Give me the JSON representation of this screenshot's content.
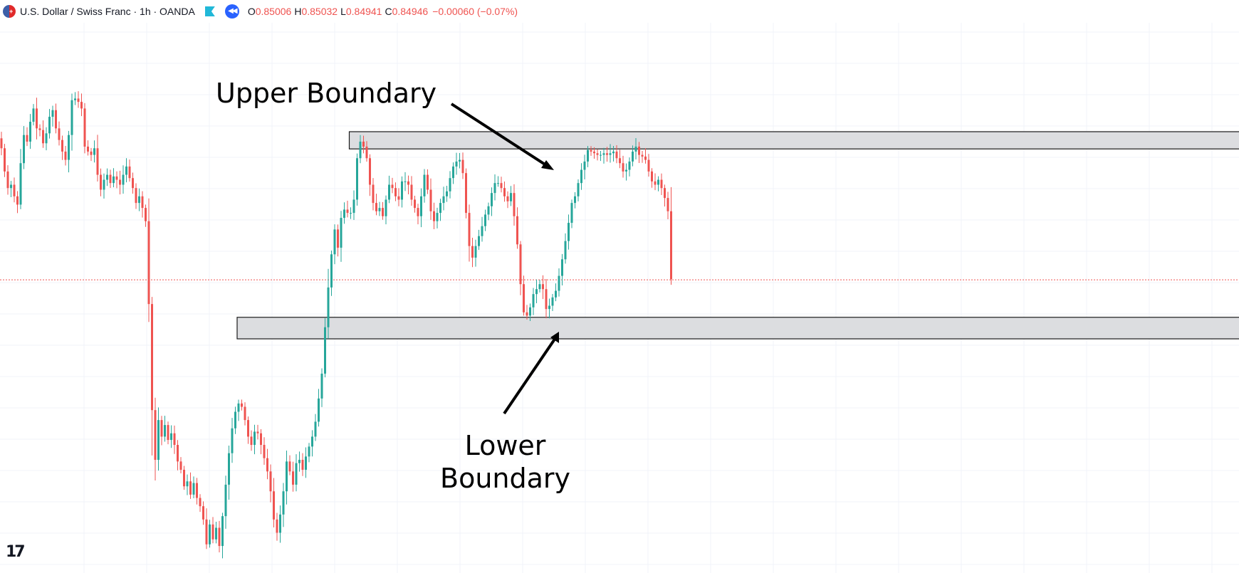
{
  "header": {
    "symbol": "U.S. Dollar / Swiss Franc · 1h · OANDA",
    "open_label": "O",
    "open_value": "0.85006",
    "high_label": "H",
    "high_value": "0.85032",
    "low_label": "L",
    "low_value": "0.84941",
    "close_label": "C",
    "close_value": "0.84946",
    "change": "−0.00060 (−0.07%)"
  },
  "icons": {
    "flag": "usd-chf-flag-icon",
    "marker": "flag-marker-icon",
    "replay": "replay-icon",
    "logo": "tradingview-logo-icon"
  },
  "annotations": {
    "upper": "Upper Boundary",
    "lower_line1": "Lower",
    "lower_line2": "Boundary"
  },
  "colors": {
    "up": "#26a69a",
    "down": "#ef5350",
    "zone_fill": "#dcdde0",
    "zone_stroke": "#1a1a1a",
    "grid": "#f0f3fa",
    "price_line": "#ef5350"
  },
  "chart_data": {
    "type": "candlestick",
    "symbol": "USDCHF",
    "timeframe": "1h",
    "title": "U.S. Dollar / Swiss Franc · 1h · OANDA",
    "ylim": [
      0.8322,
      0.8648
    ],
    "last_close": 0.84946,
    "zones": [
      {
        "name": "Upper Boundary",
        "start_bar": 109,
        "y_low": 0.85736,
        "y_high": 0.8584
      },
      {
        "name": "Lower Boundary",
        "start_bar": 74,
        "y_low": 0.8459,
        "y_high": 0.8472
      }
    ],
    "closes": [
      0.8574,
      0.856,
      0.855,
      0.8552,
      0.8545,
      0.854,
      0.8565,
      0.8582,
      0.8578,
      0.859,
      0.8598,
      0.8586,
      0.8585,
      0.8577,
      0.8583,
      0.8593,
      0.8597,
      0.8586,
      0.8579,
      0.8572,
      0.8567,
      0.8582,
      0.8603,
      0.8604,
      0.8602,
      0.8598,
      0.8575,
      0.8572,
      0.857,
      0.8574,
      0.8558,
      0.8549,
      0.8555,
      0.8558,
      0.8553,
      0.8557,
      0.8555,
      0.8552,
      0.8558,
      0.8563,
      0.8556,
      0.855,
      0.8541,
      0.8545,
      0.8538,
      0.853,
      0.848,
      0.8416,
      0.8386,
      0.841,
      0.84,
      0.8407,
      0.8398,
      0.8402,
      0.8395,
      0.8385,
      0.838,
      0.837,
      0.8373,
      0.8365,
      0.8372,
      0.8363,
      0.8358,
      0.835,
      0.8335,
      0.8347,
      0.8338,
      0.8345,
      0.8334,
      0.8352,
      0.8371,
      0.839,
      0.8405,
      0.8415,
      0.842,
      0.8418,
      0.841,
      0.84,
      0.8395,
      0.8403,
      0.8402,
      0.8395,
      0.8387,
      0.8379,
      0.8367,
      0.835,
      0.8342,
      0.8353,
      0.8367,
      0.8385,
      0.8379,
      0.8371,
      0.8384,
      0.8386,
      0.838,
      0.8388,
      0.8394,
      0.84,
      0.8409,
      0.8423,
      0.8438,
      0.8466,
      0.849,
      0.851,
      0.8525,
      0.8514,
      0.8532,
      0.8537,
      0.8535,
      0.8535,
      0.8543,
      0.8568,
      0.8578,
      0.8575,
      0.8568,
      0.8552,
      0.8541,
      0.8536,
      0.8538,
      0.8533,
      0.8543,
      0.8552,
      0.855,
      0.8545,
      0.8543,
      0.8554,
      0.8554,
      0.8552,
      0.8543,
      0.8538,
      0.8533,
      0.8545,
      0.8558,
      0.8549,
      0.8536,
      0.853,
      0.8535,
      0.8541,
      0.8545,
      0.8548,
      0.8556,
      0.8563,
      0.8566,
      0.8567,
      0.8559,
      0.8535,
      0.8515,
      0.8508,
      0.8515,
      0.8521,
      0.8527,
      0.8534,
      0.8539,
      0.8547,
      0.8553,
      0.8553,
      0.855,
      0.8545,
      0.8542,
      0.8547,
      0.8533,
      0.8516,
      0.8492,
      0.8475,
      0.8473,
      0.8478,
      0.8486,
      0.8489,
      0.8492,
      0.8489,
      0.8477,
      0.8479,
      0.8484,
      0.8488,
      0.8497,
      0.8507,
      0.8518,
      0.8529,
      0.8541,
      0.8545,
      0.8553,
      0.8561,
      0.8566,
      0.8573,
      0.8572,
      0.8571,
      0.857,
      0.857,
      0.8571,
      0.857,
      0.8571,
      0.8572,
      0.8568,
      0.8565,
      0.856,
      0.8561,
      0.8566,
      0.8572,
      0.8575,
      0.857,
      0.8569,
      0.8567,
      0.856,
      0.8554,
      0.8552,
      0.8555,
      0.855,
      0.8544,
      0.8536,
      0.8495
    ]
  }
}
